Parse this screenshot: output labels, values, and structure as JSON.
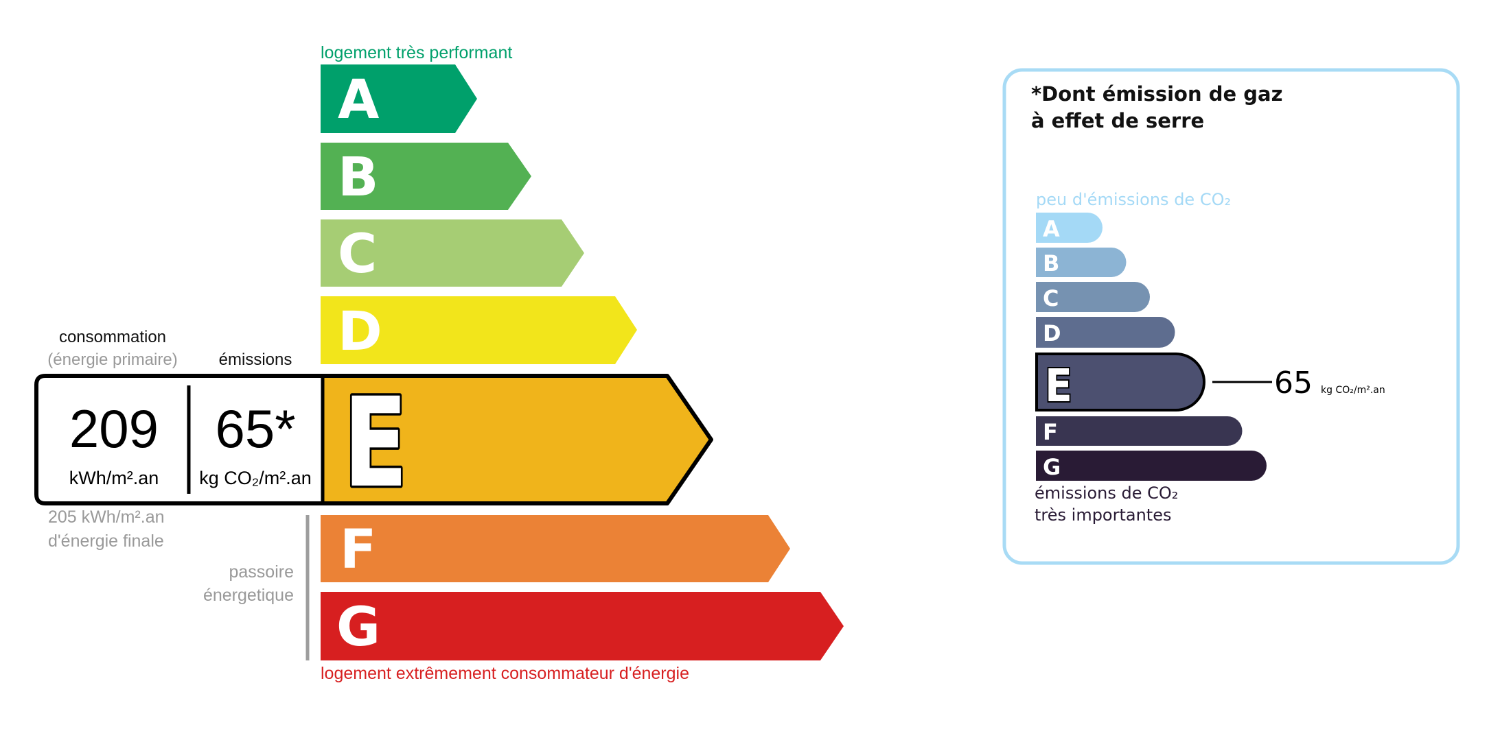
{
  "energy": {
    "top_label": "logement très performant",
    "bottom_label": "logement extrêmement consommateur d'énergie",
    "classes": [
      {
        "letter": "A",
        "color": "#00a06b"
      },
      {
        "letter": "B",
        "color": "#53b153"
      },
      {
        "letter": "C",
        "color": "#a6cd74"
      },
      {
        "letter": "D",
        "color": "#f2e51b"
      },
      {
        "letter": "E",
        "color": "#f0b41b"
      },
      {
        "letter": "F",
        "color": "#eb8236"
      },
      {
        "letter": "G",
        "color": "#d71f20"
      }
    ],
    "current_class": "E",
    "consumption_label": "consommation",
    "consumption_sublabel": "(énergie primaire)",
    "emissions_label": "émissions",
    "consumption_value": "209",
    "consumption_unit": "kWh/m².an",
    "emissions_value": "65*",
    "emissions_unit": "kg CO₂/m².an",
    "final_energy_value": "205 kWh/m².an",
    "final_energy_label": "d'énergie finale",
    "passoire_line1": "passoire",
    "passoire_line2": "énergetique"
  },
  "ghg": {
    "title_line1": "*Dont émission de gaz",
    "title_line2": "à effet de serre",
    "top_label": "peu d'émissions de CO₂",
    "bottom_line1": "émissions de CO₂",
    "bottom_line2": "très importantes",
    "classes": [
      {
        "letter": "A",
        "color": "#a4d9f6"
      },
      {
        "letter": "B",
        "color": "#8cb4d4"
      },
      {
        "letter": "C",
        "color": "#7692b1"
      },
      {
        "letter": "D",
        "color": "#5e6d8f"
      },
      {
        "letter": "E",
        "color": "#4c5070"
      },
      {
        "letter": "F",
        "color": "#393551"
      },
      {
        "letter": "G",
        "color": "#291b35"
      }
    ],
    "current_class": "E",
    "value": "65",
    "unit": "kg CO₂/m².an",
    "border_color": "#a8dbf5"
  }
}
